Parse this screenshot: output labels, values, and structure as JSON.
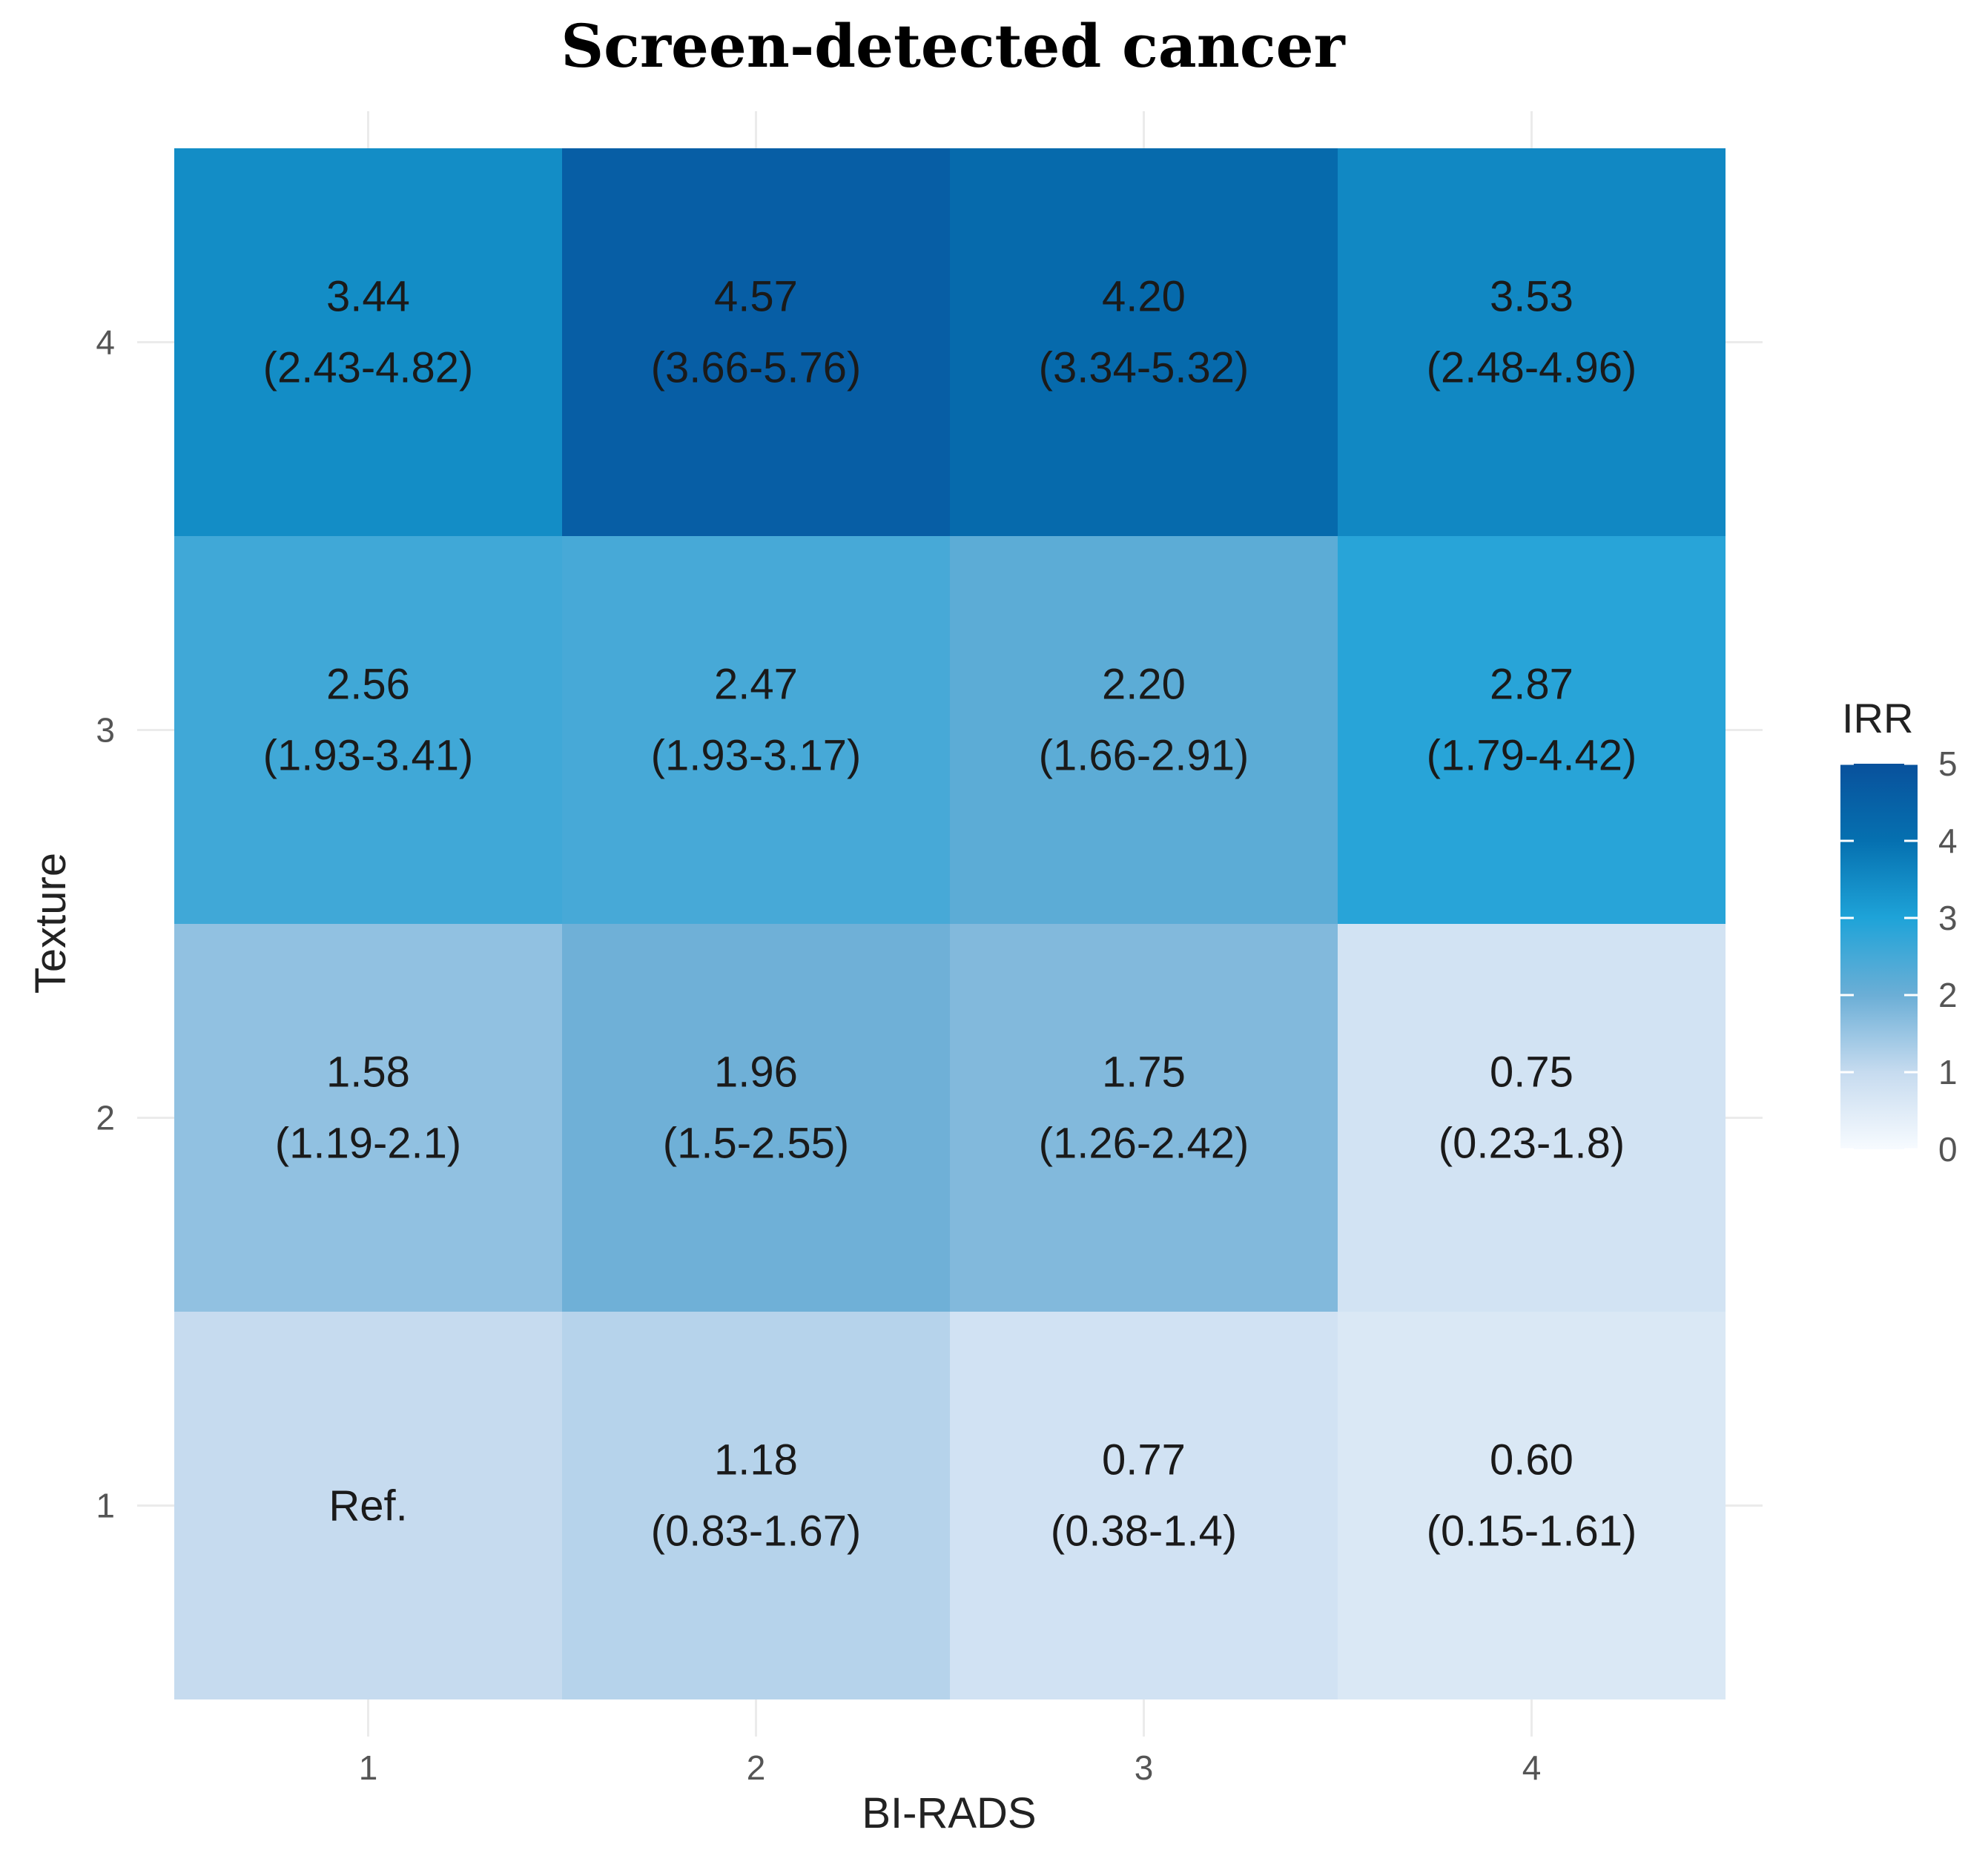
{
  "chart_data": {
    "type": "heatmap",
    "title": "Screen-detected cancer",
    "xlabel": "BI-RADS",
    "ylabel": "Texture",
    "x_categories": [
      "1",
      "2",
      "3",
      "4"
    ],
    "y_categories": [
      "1",
      "2",
      "3",
      "4"
    ],
    "legend": {
      "title": "IRR",
      "ticks": [
        "0",
        "1",
        "2",
        "3",
        "4",
        "5"
      ],
      "range": [
        0,
        5
      ],
      "position": "right",
      "color_low": "#f7fbff",
      "color_high": "#08519c"
    },
    "grid": true,
    "cells": [
      {
        "x": "1",
        "y": "4",
        "value": 3.44,
        "label": "3.44",
        "ci": "(2.43-4.82)"
      },
      {
        "x": "2",
        "y": "4",
        "value": 4.57,
        "label": "4.57",
        "ci": "(3.66-5.76)"
      },
      {
        "x": "3",
        "y": "4",
        "value": 4.2,
        "label": "4.20",
        "ci": "(3.34-5.32)"
      },
      {
        "x": "4",
        "y": "4",
        "value": 3.53,
        "label": "3.53",
        "ci": "(2.48-4.96)"
      },
      {
        "x": "1",
        "y": "3",
        "value": 2.56,
        "label": "2.56",
        "ci": "(1.93-3.41)"
      },
      {
        "x": "2",
        "y": "3",
        "value": 2.47,
        "label": "2.47",
        "ci": "(1.93-3.17)"
      },
      {
        "x": "3",
        "y": "3",
        "value": 2.2,
        "label": "2.20",
        "ci": "(1.66-2.91)"
      },
      {
        "x": "4",
        "y": "3",
        "value": 2.87,
        "label": "2.87",
        "ci": "(1.79-4.42)"
      },
      {
        "x": "1",
        "y": "2",
        "value": 1.58,
        "label": "1.58",
        "ci": "(1.19-2.1)"
      },
      {
        "x": "2",
        "y": "2",
        "value": 1.96,
        "label": "1.96",
        "ci": "(1.5-2.55)"
      },
      {
        "x": "3",
        "y": "2",
        "value": 1.75,
        "label": "1.75",
        "ci": "(1.26-2.42)"
      },
      {
        "x": "4",
        "y": "2",
        "value": 0.75,
        "label": "0.75",
        "ci": "(0.23-1.8)"
      },
      {
        "x": "1",
        "y": "1",
        "value": 1.0,
        "label": "Ref.",
        "ci": ""
      },
      {
        "x": "2",
        "y": "1",
        "value": 1.18,
        "label": "1.18",
        "ci": "(0.83-1.67)"
      },
      {
        "x": "3",
        "y": "1",
        "value": 0.77,
        "label": "0.77",
        "ci": "(0.38-1.4)"
      },
      {
        "x": "4",
        "y": "1",
        "value": 0.6,
        "label": "0.60",
        "ci": "(0.15-1.61)"
      }
    ]
  }
}
